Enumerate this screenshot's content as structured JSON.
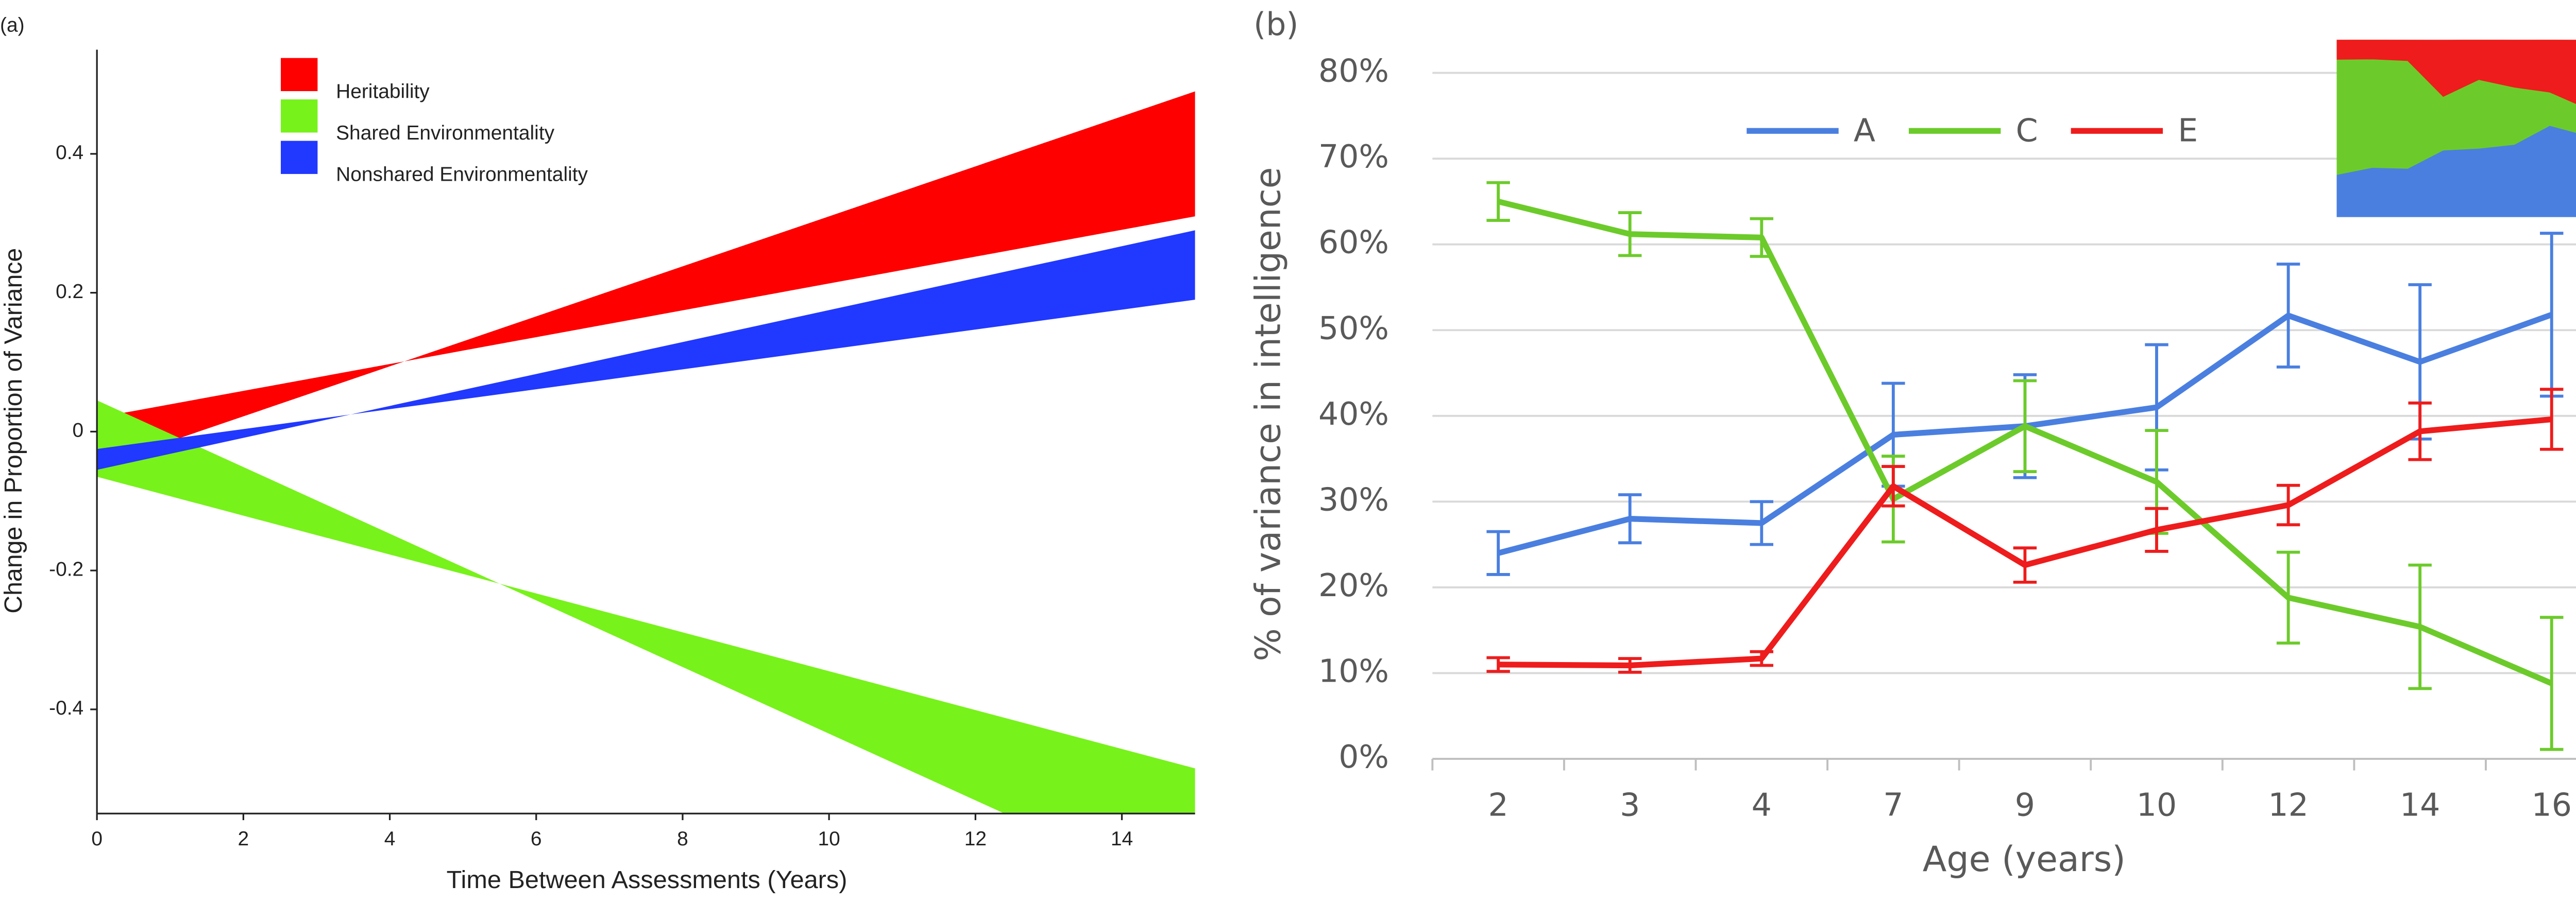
{
  "chart_data": [
    {
      "type": "band",
      "panel": "(a)",
      "x_label": "Time Between Assessments (Years)",
      "y_label": "Change in Proportion of Variance",
      "x": [
        0,
        15
      ],
      "xlim": [
        0,
        15
      ],
      "xticks": [
        0,
        2,
        4,
        6,
        8,
        10,
        12,
        14
      ],
      "ylim": [
        -0.55,
        0.55
      ],
      "yticks": [
        -0.4,
        -0.2,
        0,
        0.2,
        0.4
      ],
      "series": [
        {
          "name": "Heritability",
          "color": "#ff0000",
          "bounds": [
            [
              -0.05,
              0.49
            ],
            [
              0.02,
              0.31
            ]
          ]
        },
        {
          "name": "Shared Environmentality",
          "color": "#77f21a",
          "bounds": [
            [
              0.045,
              -0.675
            ],
            [
              -0.065,
              -0.485
            ]
          ]
        },
        {
          "name": "Nonshared Environmentality",
          "color": "#2138ff",
          "bounds": [
            [
              -0.055,
              0.29
            ],
            [
              -0.025,
              0.19
            ]
          ]
        }
      ]
    },
    {
      "type": "line",
      "panel": "(b)",
      "x_label": "Age (years)",
      "y_label": "% of variance in intelligence",
      "categories": [
        "2",
        "3",
        "4",
        "7",
        "9",
        "10",
        "12",
        "14",
        "16"
      ],
      "ylim": [
        0,
        80
      ],
      "yticks": [
        {
          "value": 0,
          "label": "0%"
        },
        {
          "value": 10,
          "label": "10%"
        },
        {
          "value": 20,
          "label": "20%"
        },
        {
          "value": 30,
          "label": "30%"
        },
        {
          "value": 40,
          "label": "40%"
        },
        {
          "value": 50,
          "label": "50%"
        },
        {
          "value": 60,
          "label": "60%"
        },
        {
          "value": 70,
          "label": "70%"
        },
        {
          "value": 80,
          "label": "80%"
        }
      ],
      "grid": true,
      "inset_ylim": [
        0,
        100
      ],
      "series": [
        {
          "name": "A",
          "color": "#4a7fe0",
          "values": [
            24,
            28,
            27.5,
            37.8,
            38.8,
            41,
            51.7,
            46.3,
            51.8
          ],
          "errors": [
            2.5,
            2.8,
            2.5,
            6,
            6,
            7.3,
            6,
            9,
            9.5
          ]
        },
        {
          "name": "C",
          "color": "#6ccb2a",
          "values": [
            65,
            61.2,
            60.8,
            30.3,
            38.8,
            32.3,
            18.8,
            15.4,
            8.8
          ],
          "errors": [
            2.2,
            2.5,
            2.2,
            5,
            5.3,
            6,
            5.3,
            7.2,
            7.7
          ]
        },
        {
          "name": "E",
          "color": "#ee1c1c",
          "values": [
            11,
            10.9,
            11.7,
            31.8,
            22.6,
            26.7,
            29.6,
            38.2,
            39.6
          ],
          "errors": [
            0.8,
            0.8,
            0.8,
            2.3,
            2,
            2.5,
            2.3,
            3.3,
            3.5
          ]
        }
      ]
    }
  ]
}
